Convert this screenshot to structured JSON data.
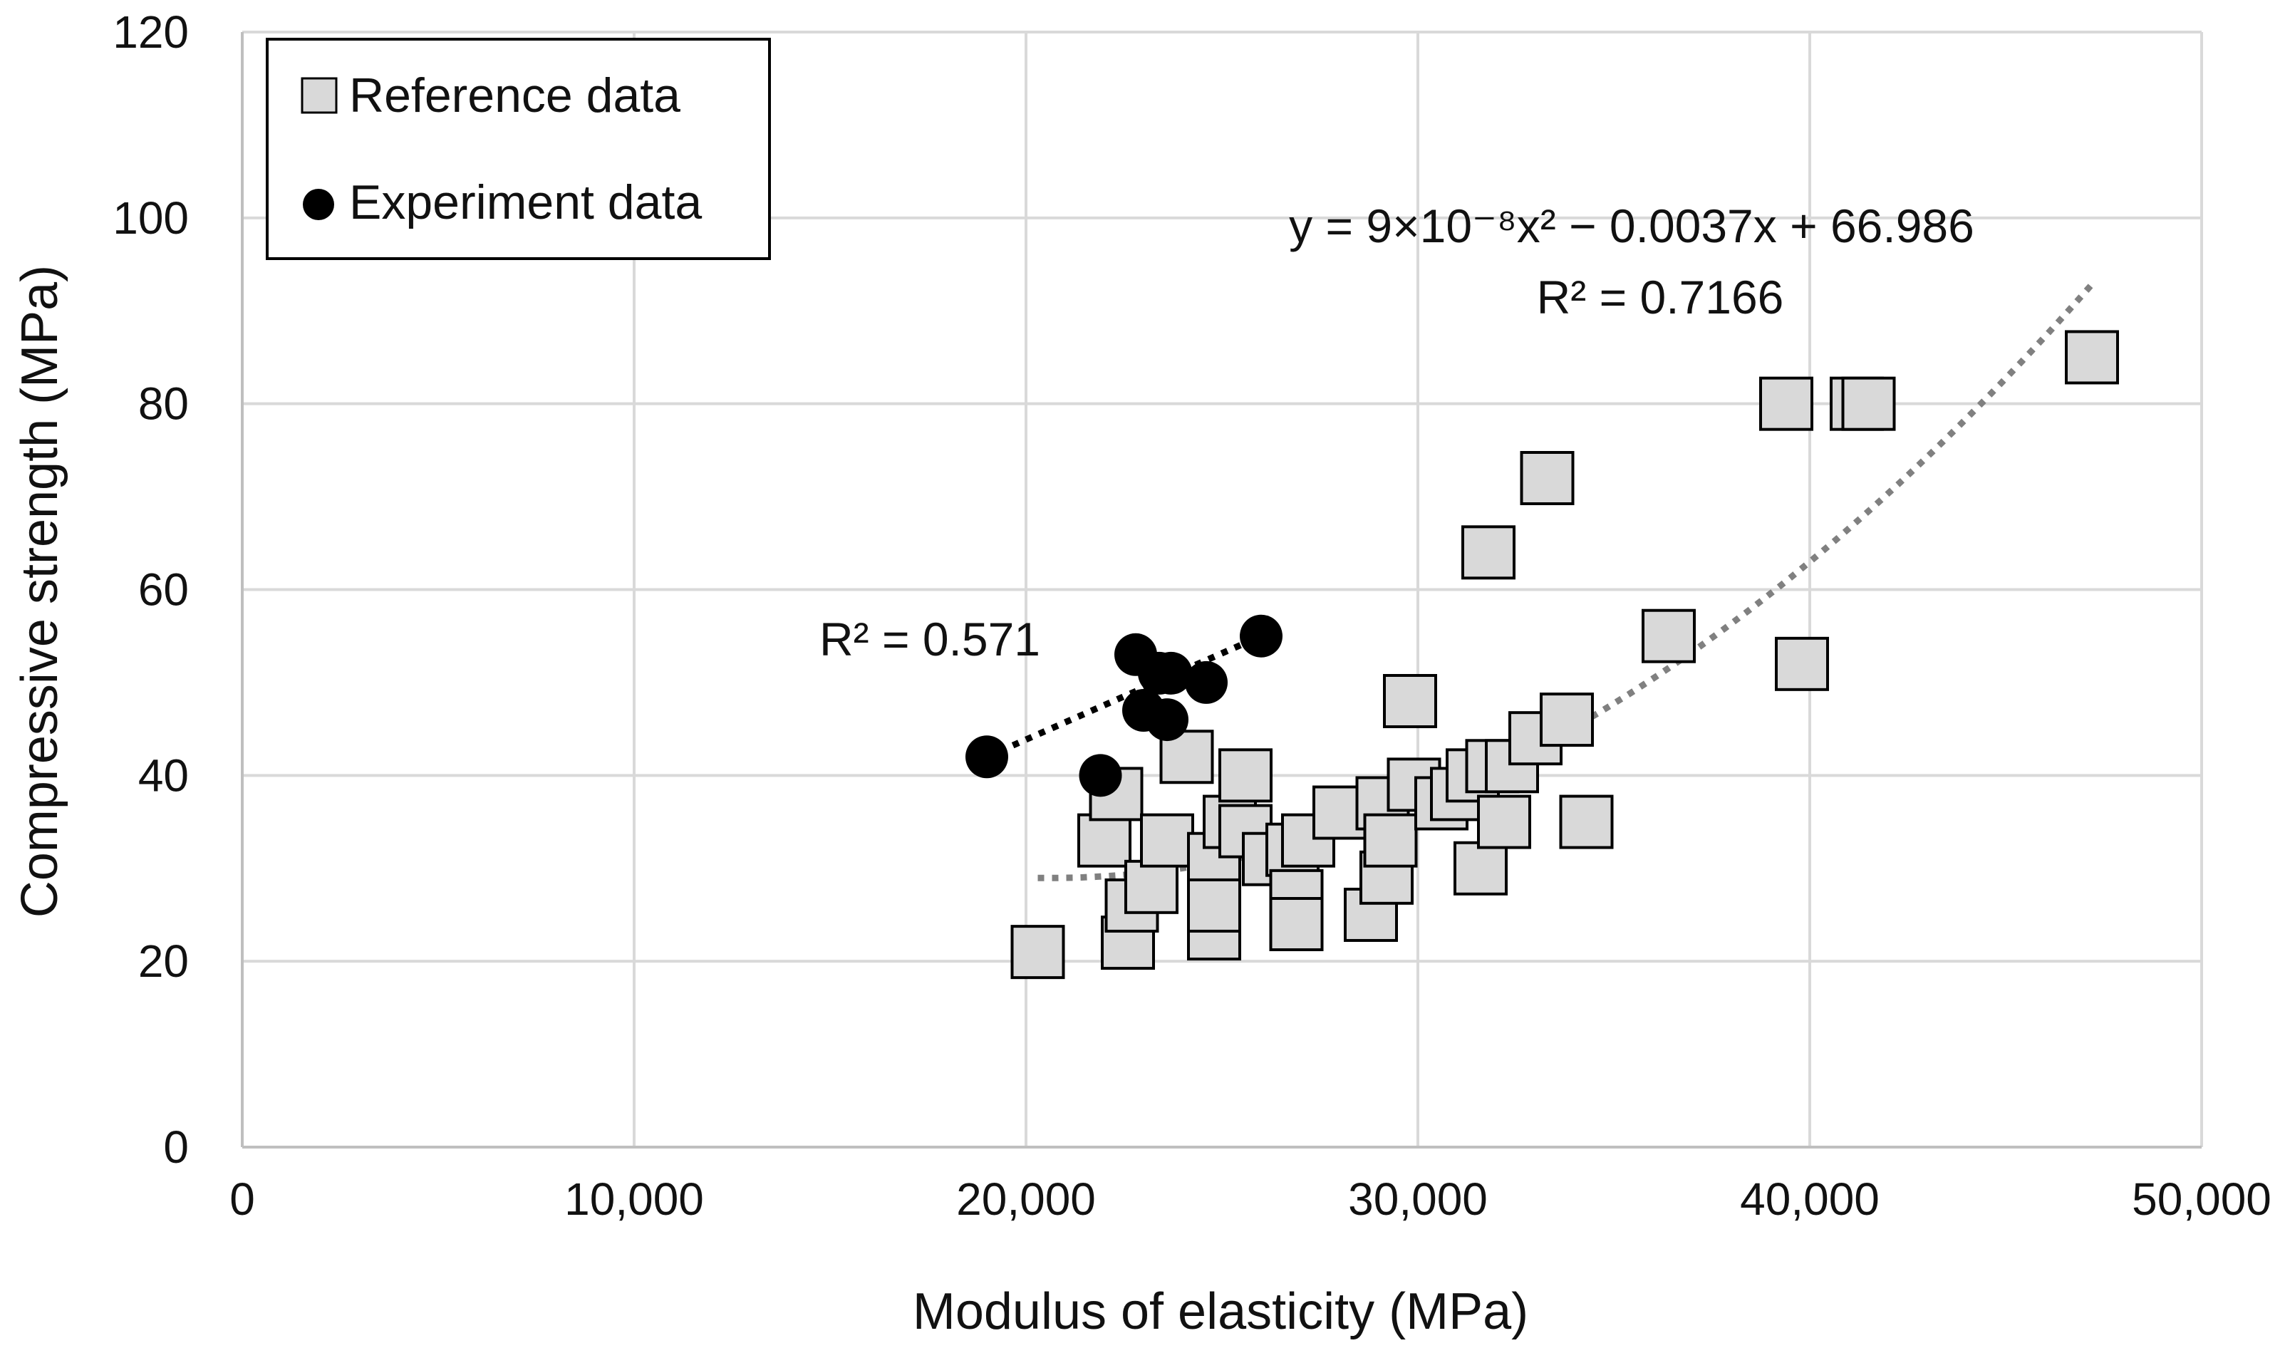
{
  "chart_data": {
    "type": "scatter",
    "title": "",
    "xlabel": "Modulus of elasticity (MPa)",
    "ylabel": "Compressive strength (MPa)",
    "xlim": [
      0,
      50000
    ],
    "ylim": [
      0,
      120
    ],
    "xticks": [
      0,
      10000,
      20000,
      30000,
      40000,
      50000
    ],
    "xtick_labels": [
      "0",
      "10,000",
      "20,000",
      "30,000",
      "40,000",
      "50,000"
    ],
    "yticks": [
      0,
      20,
      40,
      60,
      80,
      100,
      120
    ],
    "ytick_labels": [
      "0",
      "20",
      "40",
      "60",
      "80",
      "100",
      "120"
    ],
    "grid": true,
    "legend_position": "top-left",
    "series": [
      {
        "name": "Reference data",
        "marker": "square",
        "color": "#d9d9d9",
        "edge_color": "#000000",
        "points": [
          [
            20300,
            21
          ],
          [
            22000,
            33
          ],
          [
            22300,
            38
          ],
          [
            22600,
            22
          ],
          [
            22700,
            26
          ],
          [
            23200,
            28
          ],
          [
            23600,
            33
          ],
          [
            24100,
            42
          ],
          [
            24800,
            31
          ],
          [
            24800,
            23
          ],
          [
            24800,
            26
          ],
          [
            25200,
            35
          ],
          [
            25600,
            40
          ],
          [
            25600,
            34
          ],
          [
            26200,
            31
          ],
          [
            26800,
            32
          ],
          [
            26900,
            27
          ],
          [
            26900,
            24
          ],
          [
            27200,
            33
          ],
          [
            28000,
            36
          ],
          [
            28800,
            25
          ],
          [
            29100,
            37
          ],
          [
            29200,
            29
          ],
          [
            29300,
            33
          ],
          [
            29800,
            48
          ],
          [
            29900,
            39
          ],
          [
            30600,
            37
          ],
          [
            31000,
            38
          ],
          [
            31400,
            40
          ],
          [
            31600,
            30
          ],
          [
            31900,
            41
          ],
          [
            31800,
            64
          ],
          [
            32200,
            35
          ],
          [
            32400,
            41
          ],
          [
            33000,
            44
          ],
          [
            33300,
            72
          ],
          [
            33800,
            46
          ],
          [
            34300,
            35
          ],
          [
            36400,
            55
          ],
          [
            39400,
            80
          ],
          [
            39800,
            52
          ],
          [
            41200,
            80
          ],
          [
            41500,
            80
          ],
          [
            47200,
            85
          ]
        ]
      },
      {
        "name": "Experiment data",
        "marker": "circle",
        "color": "#000000",
        "points": [
          [
            19000,
            42
          ],
          [
            21900,
            40
          ],
          [
            22800,
            53
          ],
          [
            23000,
            47
          ],
          [
            23400,
            51
          ],
          [
            23600,
            46
          ],
          [
            23700,
            51
          ],
          [
            24600,
            50
          ],
          [
            26000,
            55
          ]
        ]
      }
    ],
    "trendlines": [
      {
        "series": "Reference data",
        "type": "polynomial",
        "coefficients": [
          9e-08,
          -0.0037,
          66.986
        ],
        "x_range": [
          20300,
          47200
        ],
        "color": "#808080",
        "style": "dotted",
        "equation_label": "y = 9×10⁻⁸x² − 0.0037x + 66.986",
        "r2_label": "R² = 0.7166"
      },
      {
        "series": "Experiment data",
        "type": "linear",
        "x_range": [
          19000,
          26000
        ],
        "y_range": [
          42,
          55
        ],
        "color": "#000000",
        "style": "dotted",
        "r2_label": "R² = 0.571"
      }
    ]
  }
}
